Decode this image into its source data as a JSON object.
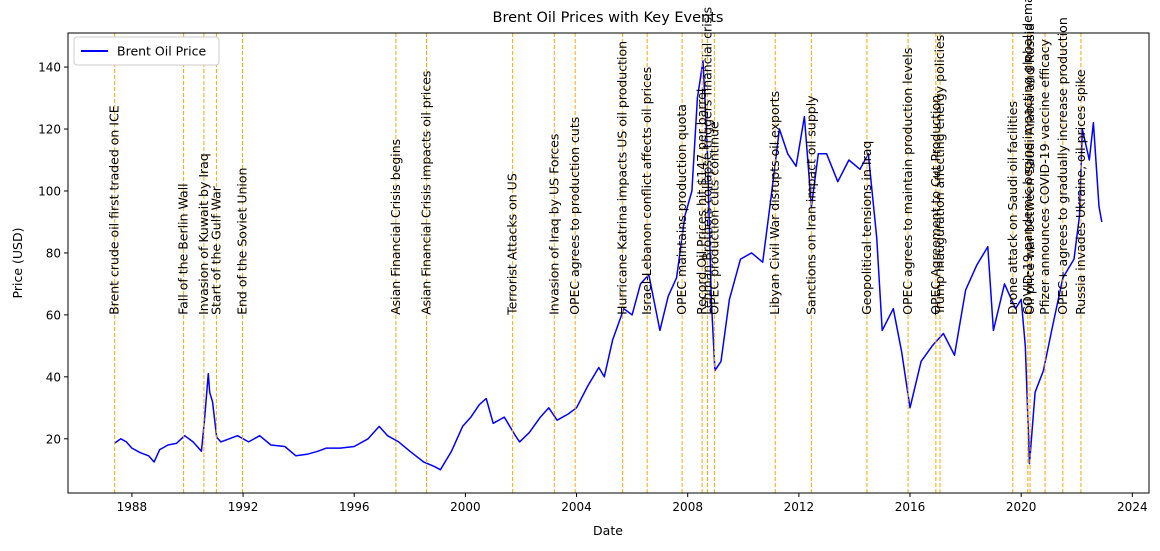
{
  "colors": {
    "price_line": "#0000ff",
    "event_line": "#ffa500",
    "axes": "#000000",
    "background": "#ffffff"
  },
  "chart_data": {
    "type": "line",
    "title": "Brent Oil Prices with Key Events",
    "xlabel": "Date",
    "ylabel": "Price (USD)",
    "xlim": [
      1985.7,
      2024.6
    ],
    "ylim": [
      2.5,
      151.0
    ],
    "x_ticks": [
      1988,
      1992,
      1996,
      2000,
      2004,
      2008,
      2012,
      2016,
      2020,
      2024
    ],
    "y_ticks": [
      20,
      40,
      60,
      80,
      100,
      120,
      140
    ],
    "x_tick_labels": [
      "1988",
      "1992",
      "1996",
      "2000",
      "2004",
      "2008",
      "2012",
      "2016",
      "2020",
      "2024"
    ],
    "y_tick_labels": [
      "20",
      "40",
      "60",
      "80",
      "100",
      "120",
      "140"
    ],
    "grid": false,
    "legend": {
      "position": "upper-left",
      "entries": [
        {
          "label": "Brent Oil Price"
        }
      ]
    },
    "series": [
      {
        "name": "Brent Oil Price",
        "x": [
          1987.38,
          1987.6,
          1987.8,
          1988.0,
          1988.3,
          1988.6,
          1988.8,
          1989.0,
          1989.3,
          1989.6,
          1989.9,
          1990.2,
          1990.5,
          1990.6,
          1990.75,
          1990.8,
          1990.9,
          1991.05,
          1991.2,
          1991.5,
          1991.8,
          1992.2,
          1992.6,
          1993.0,
          1993.5,
          1993.9,
          1994.3,
          1994.7,
          1995.0,
          1995.5,
          1996.0,
          1996.5,
          1996.9,
          1997.2,
          1997.6,
          1998.0,
          1998.5,
          1998.9,
          1999.1,
          1999.5,
          1999.9,
          2000.2,
          2000.5,
          2000.75,
          2001.0,
          2001.4,
          2001.8,
          2001.95,
          2002.3,
          2002.7,
          2003.0,
          2003.3,
          2003.7,
          2004.0,
          2004.4,
          2004.8,
          2005.0,
          2005.3,
          2005.7,
          2006.0,
          2006.3,
          2006.6,
          2007.0,
          2007.3,
          2007.6,
          2007.9,
          2008.15,
          2008.35,
          2008.55,
          2008.7,
          2008.85,
          2008.98,
          2009.2,
          2009.5,
          2009.9,
          2010.3,
          2010.7,
          2011.0,
          2011.3,
          2011.6,
          2011.9,
          2012.2,
          2012.45,
          2012.7,
          2013.0,
          2013.4,
          2013.8,
          2014.2,
          2014.5,
          2014.8,
          2015.0,
          2015.4,
          2015.7,
          2016.0,
          2016.4,
          2016.8,
          2017.2,
          2017.6,
          2018.0,
          2018.4,
          2018.8,
          2019.0,
          2019.4,
          2019.8,
          2020.0,
          2020.15,
          2020.3,
          2020.5,
          2020.8,
          2021.1,
          2021.5,
          2021.9,
          2022.1,
          2022.2,
          2022.45,
          2022.6,
          2022.8,
          2022.9
        ],
        "values": [
          18.6,
          20.0,
          19.0,
          17.0,
          15.5,
          14.5,
          12.5,
          16.5,
          18.0,
          18.5,
          21.0,
          19.0,
          16.0,
          25.0,
          41.0,
          35.0,
          32.0,
          20.5,
          19.0,
          20.0,
          21.0,
          19.0,
          21.0,
          18.0,
          17.5,
          14.5,
          15.0,
          16.0,
          17.0,
          17.0,
          17.5,
          20.0,
          24.0,
          21.0,
          19.0,
          16.0,
          12.5,
          11.0,
          10.0,
          16.0,
          24.0,
          27.0,
          31.0,
          33.0,
          25.0,
          27.0,
          21.0,
          19.0,
          22.0,
          27.0,
          30.0,
          26.0,
          28.0,
          30.0,
          37.0,
          43.0,
          40.0,
          52.0,
          62.0,
          60.0,
          70.0,
          73.0,
          55.0,
          66.0,
          72.0,
          92.0,
          100.0,
          130.0,
          142.0,
          115.0,
          65.0,
          42.0,
          45.0,
          65.0,
          78.0,
          80.0,
          77.0,
          98.0,
          120.0,
          112.0,
          108.0,
          124.0,
          95.0,
          112.0,
          112.0,
          103.0,
          110.0,
          107.0,
          112.0,
          85.0,
          55.0,
          62.0,
          48.0,
          30.0,
          45.0,
          50.0,
          54.0,
          47.0,
          68.0,
          76.0,
          82.0,
          55.0,
          70.0,
          62.0,
          65.0,
          50.0,
          12.0,
          35.0,
          42.0,
          55.0,
          72.0,
          78.0,
          92.0,
          120.0,
          110.0,
          122.0,
          95.0,
          90.0
        ]
      }
    ],
    "events": [
      {
        "x": 1987.38,
        "label": "Brent crude oil first traded on ICE"
      },
      {
        "x": 1989.86,
        "label": "Fall of the Berlin Wall"
      },
      {
        "x": 1990.59,
        "label": "Invasion of Kuwait by Iraq"
      },
      {
        "x": 1991.04,
        "label": "Start of the Gulf War"
      },
      {
        "x": 1991.98,
        "label": "End of the Soviet Union"
      },
      {
        "x": 1997.5,
        "label": "Asian Financial Crisis begins"
      },
      {
        "x": 1998.6,
        "label": "Asian Financial Crisis impacts oil prices"
      },
      {
        "x": 2001.7,
        "label": "Terrorist Attacks on US"
      },
      {
        "x": 2003.2,
        "label": "Invasion of Iraq by US Forces"
      },
      {
        "x": 2003.95,
        "label": "OPEC agrees to production cuts"
      },
      {
        "x": 2005.66,
        "label": "Hurricane Katrina impacts US oil production"
      },
      {
        "x": 2006.54,
        "label": "Israel-Lebanon conflict affects oil prices"
      },
      {
        "x": 2007.8,
        "label": "OPEC maintains production quota"
      },
      {
        "x": 2008.52,
        "label": "Record Oil Prices hit $147 per barrel"
      },
      {
        "x": 2008.71,
        "label": "Lehman Brothers collapse triggers financial crisis"
      },
      {
        "x": 2008.96,
        "label": "OPEC production cuts continue"
      },
      {
        "x": 2011.15,
        "label": "Libyan Civil War disrupts oil exports"
      },
      {
        "x": 2012.45,
        "label": "Sanctions on Iran impact oil supply"
      },
      {
        "x": 2014.45,
        "label": "Geopolitical tensions in Iraq"
      },
      {
        "x": 2015.93,
        "label": "OPEC agrees to maintain production levels"
      },
      {
        "x": 2016.93,
        "label": "OPEC Agreement to Cut Production"
      },
      {
        "x": 2017.08,
        "label": "Trump inauguration affecting energy policies"
      },
      {
        "x": 2019.7,
        "label": "Drone attack on Saudi oil facilities"
      },
      {
        "x": 2020.24,
        "label": "COVID-19 pandemic begins impacting global demand"
      },
      {
        "x": 2020.32,
        "label": "Oil price war between Saudi Arabia and Russia"
      },
      {
        "x": 2020.86,
        "label": "Pfizer announces COVID-19 vaccine efficacy"
      },
      {
        "x": 2021.5,
        "label": "OPEC+ agrees to gradually increase production"
      },
      {
        "x": 2022.15,
        "label": "Russia invades Ukraine, oil prices spike"
      }
    ]
  }
}
